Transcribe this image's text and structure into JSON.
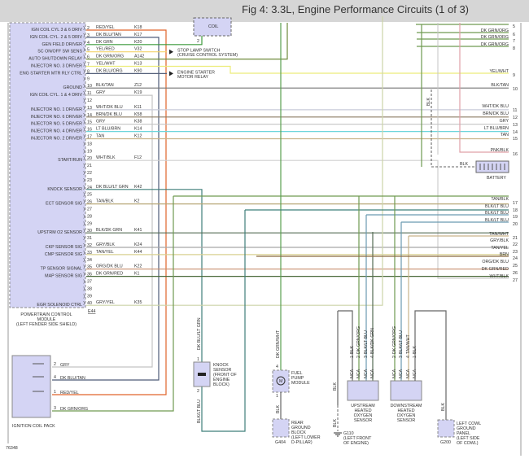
{
  "title": "Fig 4: 3.3L, Engine Performance Circuits (1 of 3)",
  "figure_number": "76348",
  "pcm": {
    "name_lines": [
      "POWERTRAIN CONTROL",
      "MODULE",
      "(LEFT FENDER SIDE SHIELD)"
    ],
    "connector": "E44",
    "pins": [
      {
        "pin": "2",
        "function": "IGN COIL CYL 3 & 6 DRIV",
        "wire": "RED/YEL",
        "circuit": "K18",
        "color": "#e0652a"
      },
      {
        "pin": "3",
        "function": "IGN COIL CYL. 2 & 5 DRIV",
        "wire": "DK BLU/TAN",
        "circuit": "K17",
        "color": "#4d5a78"
      },
      {
        "pin": "4",
        "function": "GEN FIELD DRIVER",
        "wire": "DK GRN",
        "circuit": "K20",
        "color": "#3d9a3d"
      },
      {
        "pin": "5",
        "function": "SC ON/OFF SW SENS",
        "wire": "YEL/RED",
        "circuit": "V32",
        "color": "#f2d36a"
      },
      {
        "pin": "6",
        "function": "AUTO SHUTDOWN RELAY",
        "wire": "DK GRN/ORG",
        "circuit": "A142",
        "color": "#6f8a3c"
      },
      {
        "pin": "7",
        "function": "INJECTOR NO. 3 DRIVER",
        "wire": "YEL/WHT",
        "circuit": "K13",
        "color": "#ecec7a"
      },
      {
        "pin": "8",
        "function": "ENG STARTER MTR RLY CTRL",
        "wire": "DK BLU/ORG",
        "circuit": "K90",
        "color": "#55607a"
      },
      {
        "pin": "9"
      },
      {
        "pin": "10",
        "function": "GROUND",
        "wire": "BLK/TAN",
        "circuit": "Z12",
        "color": "#777777"
      },
      {
        "pin": "11",
        "function": "IGN COIL CYL. 1 & 4 DRIV",
        "wire": "GRY",
        "circuit": "K19",
        "color": "#c4c4c4"
      },
      {
        "pin": "12"
      },
      {
        "pin": "13",
        "function": "INJECTOR NO. 1 DRIVER",
        "wire": "WHT/DK BLU",
        "circuit": "K11",
        "color": "#c8ccd8"
      },
      {
        "pin": "14",
        "function": "INJECTOR NO. 6 DRIVER",
        "wire": "BRN/DK BLU",
        "circuit": "K58",
        "color": "#8a7a60"
      },
      {
        "pin": "15",
        "function": "INJECTOR NO. 5 DRIVER",
        "wire": "GRY",
        "circuit": "K38",
        "color": "#c4c4c4"
      },
      {
        "pin": "16",
        "function": "INJECTOR NO. 4 DRIVER",
        "wire": "LT BLU/BRN",
        "circuit": "K14",
        "color": "#6fd6dc"
      },
      {
        "pin": "17",
        "function": "INJECTOR NO. 2 DRIVER",
        "wire": "TAN",
        "circuit": "K12",
        "color": "#c9b48a"
      },
      {
        "pin": "18"
      },
      {
        "pin": "19"
      },
      {
        "pin": "20",
        "function": "START/RUN",
        "wire": "WHT/BLK",
        "circuit": "F12",
        "color": "#cfcfcf"
      },
      {
        "pin": "21"
      },
      {
        "pin": "22"
      },
      {
        "pin": "23"
      },
      {
        "pin": "24",
        "function": "KNOCK SENSOR",
        "wire": "DK BLU/LT GRN",
        "circuit": "K42",
        "color": "#3f7f7a"
      },
      {
        "pin": "25"
      },
      {
        "pin": "26",
        "function": "ECT SENSOR SIG",
        "wire": "TAN/BLK",
        "circuit": "K2",
        "color": "#b8a878"
      },
      {
        "pin": "27"
      },
      {
        "pin": "28"
      },
      {
        "pin": "29"
      },
      {
        "pin": "30",
        "function": "UPSTRM O2 SENSOR",
        "wire": "BLK/DK GRN",
        "circuit": "K41",
        "color": "#556b55"
      },
      {
        "pin": "31"
      },
      {
        "pin": "32",
        "function": "CKP SENSOR SIG",
        "wire": "GRY/BLK",
        "circuit": "K24",
        "color": "#a8a8a8"
      },
      {
        "pin": "33",
        "function": "CMP SENSOR SIG",
        "wire": "TAN/YEL",
        "circuit": "K44",
        "color": "#d8d090"
      },
      {
        "pin": "34"
      },
      {
        "pin": "35",
        "function": "TP SENSOR SIGNAL",
        "wire": "ORG/DK BLU",
        "circuit": "K22",
        "color": "#c89070"
      },
      {
        "pin": "36",
        "function": "MAP SENSOR SIG",
        "wire": "DK GRN/RED",
        "circuit": "K1",
        "color": "#4a6a3a"
      },
      {
        "pin": "37"
      },
      {
        "pin": "38"
      },
      {
        "pin": "39"
      },
      {
        "pin": "40",
        "function": "EGR SOLENOID CTRL",
        "wire": "GRY/YEL",
        "circuit": "K35",
        "color": "#ccd4a8"
      }
    ]
  },
  "right_pins": [
    {
      "pin": "5",
      "wire": ""
    },
    {
      "pin": "6",
      "wire": "DK GRN/ORG"
    },
    {
      "pin": "7",
      "wire": "DK GRN/ORG"
    },
    {
      "pin": "8",
      "wire": "DK GRN/ORG"
    },
    {
      "pin": "9",
      "wire": "YEL/WHT"
    },
    {
      "pin": "10",
      "wire": "BLK/TAN"
    },
    {
      "pin": "11",
      "wire": "WHT/DK BLU"
    },
    {
      "pin": "12",
      "wire": "BRN/DK BLU"
    },
    {
      "pin": "13",
      "wire": "GRY"
    },
    {
      "pin": "14",
      "wire": "LT BLU/BRN"
    },
    {
      "pin": "15",
      "wire": "TAN"
    },
    {
      "pin": "16",
      "wire": "PNK/BLK"
    },
    {
      "pin": "17",
      "wire": "TAN/BLK"
    },
    {
      "pin": "18",
      "wire": "BLK/LT BLU"
    },
    {
      "pin": "19",
      "wire": "BLK/LT BLU"
    },
    {
      "pin": "20",
      "wire": "BLK/LT BLU"
    },
    {
      "pin": "21",
      "wire": "TAN/WHT"
    },
    {
      "pin": "22",
      "wire": "GRY/BLK"
    },
    {
      "pin": "23",
      "wire": "TAN/YEL"
    },
    {
      "pin": "24",
      "wire": "BRN"
    },
    {
      "pin": "25",
      "wire": "ORG/DK BLU"
    },
    {
      "pin": "26",
      "wire": "DK GRN/RED"
    },
    {
      "pin": "27",
      "wire": "WHT/BLK"
    }
  ],
  "labels": {
    "coil": "COIL",
    "coil_pin": "2",
    "stop_lamp": [
      "STOP LAMP SWITCH",
      "(CRUISE CONTROL SYSTEM)"
    ],
    "starter_relay": [
      "ENGINE STARTER",
      "MOTOR RELAY"
    ],
    "battery": "BATTERY",
    "blk": "BLK",
    "ignition_coil_pack": "IGNITION COIL PACK",
    "coil_pack_pins": [
      {
        "pin": "2",
        "wire": "GRY"
      },
      {
        "pin": "4",
        "wire": "DK BLU/TAN"
      },
      {
        "pin": "1",
        "wire": "RED/YEL"
      },
      {
        "pin": "3",
        "wire": "DK GRN/ORG"
      }
    ],
    "knock_sensor": [
      "KNOCK",
      "SENSOR",
      "(FRONT OF",
      "ENGINE",
      "BLOCK)"
    ],
    "knock_wire_top": "DK BLU/LT GRN",
    "knock_wire_bottom": "BLK/LT BLU",
    "knock_pins": [
      "1",
      "2"
    ],
    "fuel_pump": [
      "FUEL",
      "PUMP",
      "MODULE"
    ],
    "fuel_pump_wire": "DK GRN/WHT",
    "fuel_pump_pins": [
      "4",
      "1"
    ],
    "rear_ground": [
      "REAR",
      "GROUND",
      "BLOCK",
      "(LEFT LOWER",
      "D-PILLAR)"
    ],
    "g404": "G404",
    "g110": [
      "G110",
      "(LEFT FRONT",
      "OF ENGINE)"
    ],
    "upstream_o2": [
      "UPSTREAM",
      "HEATED",
      "OXYGEN",
      "SENSOR"
    ],
    "upstream_wires": [
      {
        "pin": "1",
        "wire": "BLK"
      },
      {
        "pin": "2",
        "wire": "DK GRN/ORG"
      },
      {
        "pin": "3",
        "wire": "BLK/LT BLU"
      },
      {
        "pin": "4",
        "wire": "BLK/DK GRN"
      }
    ],
    "downstream_o2": [
      "DOWNSTREAM",
      "HEATED",
      "OXYGEN",
      "SENSOR"
    ],
    "downstream_wires": [
      {
        "pin": "2",
        "wire": "DK GRN/ORG"
      },
      {
        "pin": "3",
        "wire": "BLK/LT BLU"
      },
      {
        "pin": "4",
        "wire": "TAN/WHT"
      },
      {
        "pin": "1",
        "wire": "BLK"
      }
    ],
    "nca": "NCA",
    "left_cowl": [
      "LEFT COWL",
      "GROUND",
      "PANEL",
      "(LEFT SIDE",
      "OF COWL)"
    ],
    "g200": "G200"
  }
}
